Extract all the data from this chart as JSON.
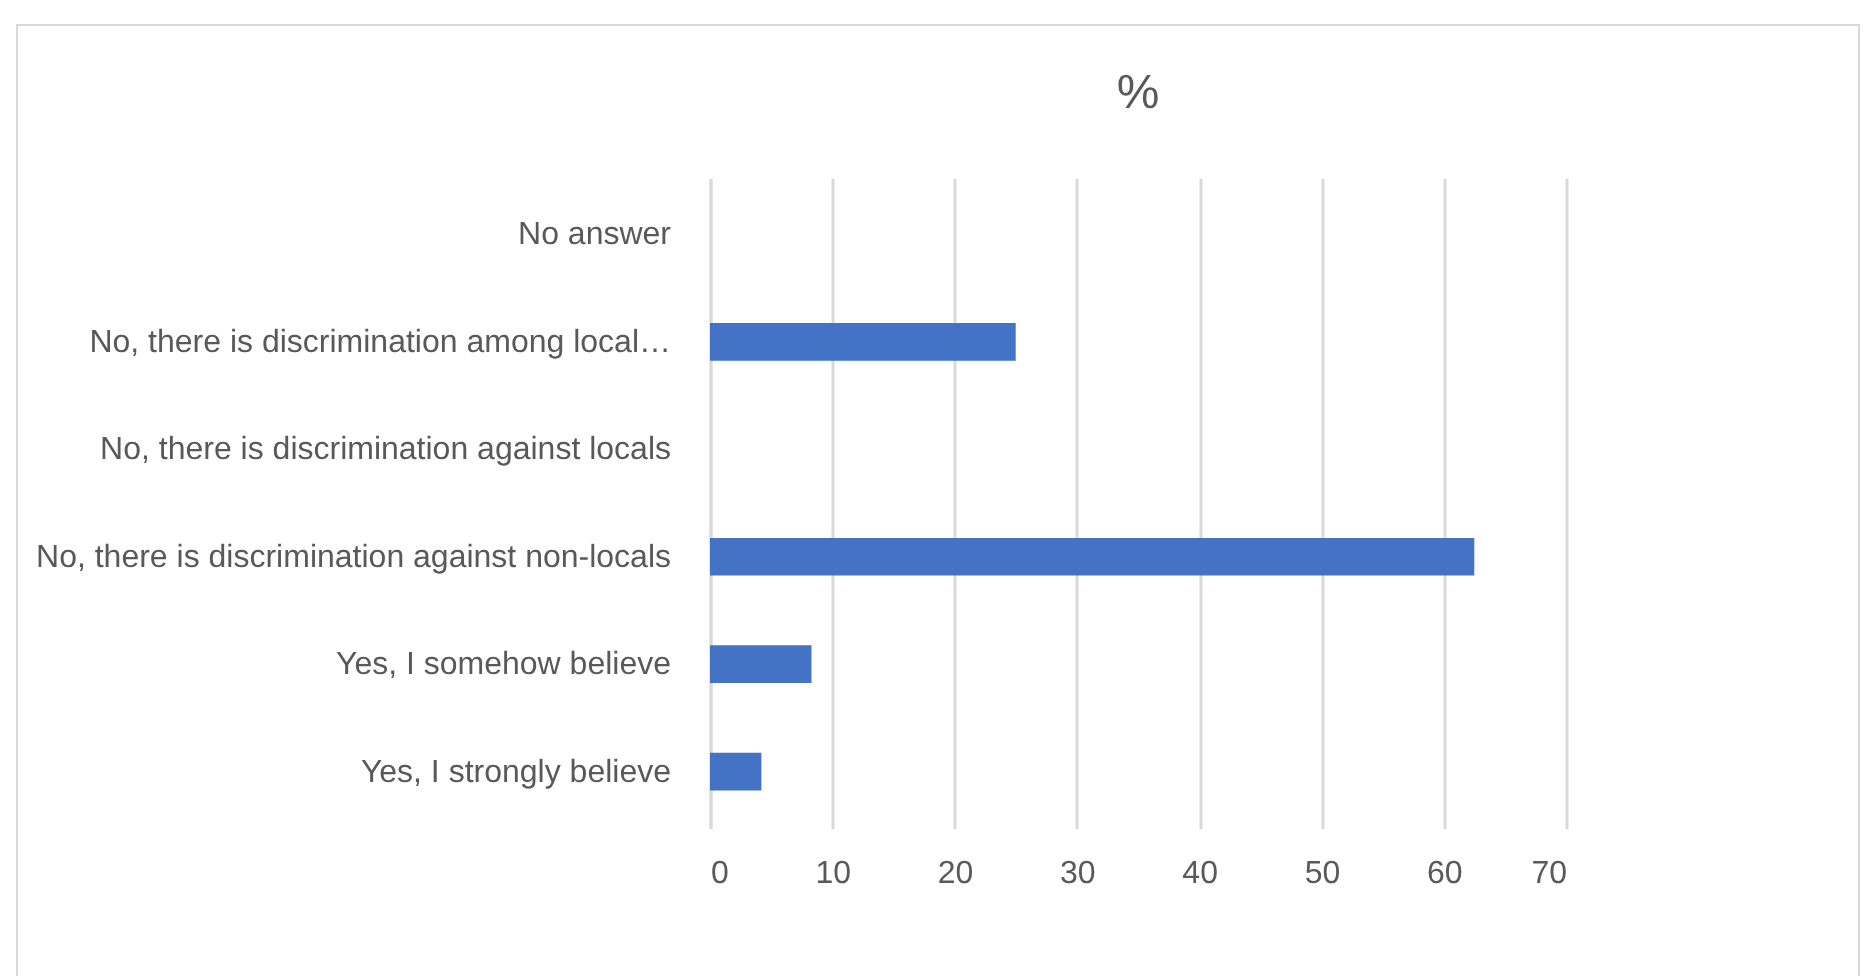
{
  "chart_data": {
    "type": "bar",
    "orientation": "horizontal",
    "title": "%",
    "categories": [
      "No answer",
      "No, there is discrimination among local…",
      "No, there is discrimination against locals",
      "No, there is discrimination against non-locals",
      "Yes, I somehow believe",
      "Yes, I strongly believe"
    ],
    "values": [
      0,
      25,
      0,
      62.5,
      8.3,
      4.2
    ],
    "color": "#4472c4",
    "xlim": [
      0,
      70
    ],
    "xticks": [
      0,
      10,
      20,
      30,
      40,
      50,
      60,
      70
    ],
    "grid": "x"
  }
}
